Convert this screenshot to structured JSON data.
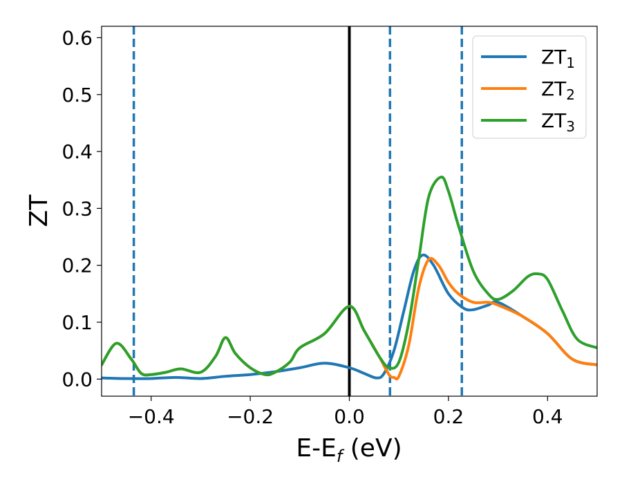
{
  "chart_data": {
    "type": "line",
    "title": "",
    "xlabel": "E-E_f (eV)",
    "xlabel_parts": {
      "main": "E-E",
      "sub": "f",
      "rest": " (eV)"
    },
    "ylabel": "ZT",
    "xlim": [
      -0.5,
      0.5
    ],
    "ylim": [
      -0.03,
      0.62
    ],
    "x_ticks": [
      -0.4,
      -0.2,
      0.0,
      0.2,
      0.4
    ],
    "x_tick_labels": [
      "−0.4",
      "−0.2",
      "0.0",
      "0.2",
      "0.4"
    ],
    "y_ticks": [
      0.0,
      0.1,
      0.2,
      0.3,
      0.4,
      0.5,
      0.6
    ],
    "y_tick_labels": [
      "0.0",
      "0.1",
      "0.2",
      "0.3",
      "0.4",
      "0.5",
      "0.6"
    ],
    "grid": false,
    "legend_position": "top-right",
    "vertical_lines": [
      {
        "x": -0.435,
        "style": "dashed",
        "color": "#1f77b4"
      },
      {
        "x": 0.0,
        "style": "solid",
        "color": "#000000"
      },
      {
        "x": 0.082,
        "style": "dashed",
        "color": "#1f77b4"
      },
      {
        "x": 0.227,
        "style": "dashed",
        "color": "#1f77b4"
      }
    ],
    "series": [
      {
        "name": "ZT_1",
        "label_main": "ZT",
        "label_sub": "1",
        "color": "#1f77b4",
        "x": [
          -0.5,
          -0.45,
          -0.4,
          -0.35,
          -0.3,
          -0.25,
          -0.2,
          -0.15,
          -0.1,
          -0.05,
          0.0,
          0.03,
          0.055,
          0.07,
          0.09,
          0.11,
          0.13,
          0.148,
          0.17,
          0.2,
          0.23,
          0.25,
          0.28,
          0.3,
          0.35,
          0.4,
          0.45,
          0.5
        ],
        "y": [
          0.002,
          0.001,
          0.001,
          0.003,
          0.001,
          0.005,
          0.008,
          0.013,
          0.02,
          0.028,
          0.02,
          0.01,
          0.002,
          0.01,
          0.05,
          0.12,
          0.19,
          0.218,
          0.2,
          0.15,
          0.125,
          0.122,
          0.13,
          0.135,
          0.11,
          0.08,
          0.035,
          0.025
        ]
      },
      {
        "name": "ZT_2",
        "label_main": "ZT",
        "label_sub": "2",
        "color": "#ff7f0e",
        "x": [
          -0.5,
          -0.47,
          -0.44,
          -0.42,
          -0.4,
          -0.37,
          -0.34,
          -0.3,
          -0.27,
          -0.25,
          -0.23,
          -0.2,
          -0.17,
          -0.15,
          -0.12,
          -0.1,
          -0.05,
          0.0,
          0.03,
          0.06,
          0.08,
          0.09,
          0.1,
          0.12,
          0.14,
          0.16,
          0.18,
          0.2,
          0.22,
          0.25,
          0.28,
          0.3,
          0.35,
          0.4,
          0.45,
          0.5
        ],
        "y": [
          0.025,
          0.063,
          0.035,
          0.01,
          0.008,
          0.012,
          0.018,
          0.012,
          0.04,
          0.073,
          0.045,
          0.02,
          0.008,
          0.012,
          0.03,
          0.055,
          0.08,
          0.128,
          0.085,
          0.04,
          0.008,
          0.003,
          0.005,
          0.06,
          0.16,
          0.21,
          0.2,
          0.17,
          0.15,
          0.135,
          0.135,
          0.13,
          0.11,
          0.08,
          0.035,
          0.025
        ]
      },
      {
        "name": "ZT_3",
        "label_main": "ZT",
        "label_sub": "3",
        "color": "#2ca02c",
        "x": [
          -0.5,
          -0.47,
          -0.44,
          -0.42,
          -0.4,
          -0.37,
          -0.34,
          -0.3,
          -0.27,
          -0.25,
          -0.23,
          -0.2,
          -0.17,
          -0.15,
          -0.12,
          -0.1,
          -0.05,
          0.0,
          0.03,
          0.06,
          0.08,
          0.1,
          0.12,
          0.14,
          0.16,
          0.185,
          0.2,
          0.22,
          0.25,
          0.28,
          0.3,
          0.33,
          0.36,
          0.38,
          0.4,
          0.43,
          0.46,
          0.5
        ],
        "y": [
          0.025,
          0.063,
          0.035,
          0.01,
          0.008,
          0.012,
          0.018,
          0.012,
          0.04,
          0.073,
          0.045,
          0.02,
          0.008,
          0.012,
          0.03,
          0.055,
          0.08,
          0.128,
          0.085,
          0.04,
          0.02,
          0.03,
          0.1,
          0.21,
          0.32,
          0.355,
          0.33,
          0.27,
          0.19,
          0.15,
          0.14,
          0.155,
          0.18,
          0.185,
          0.175,
          0.12,
          0.07,
          0.055
        ]
      }
    ]
  }
}
